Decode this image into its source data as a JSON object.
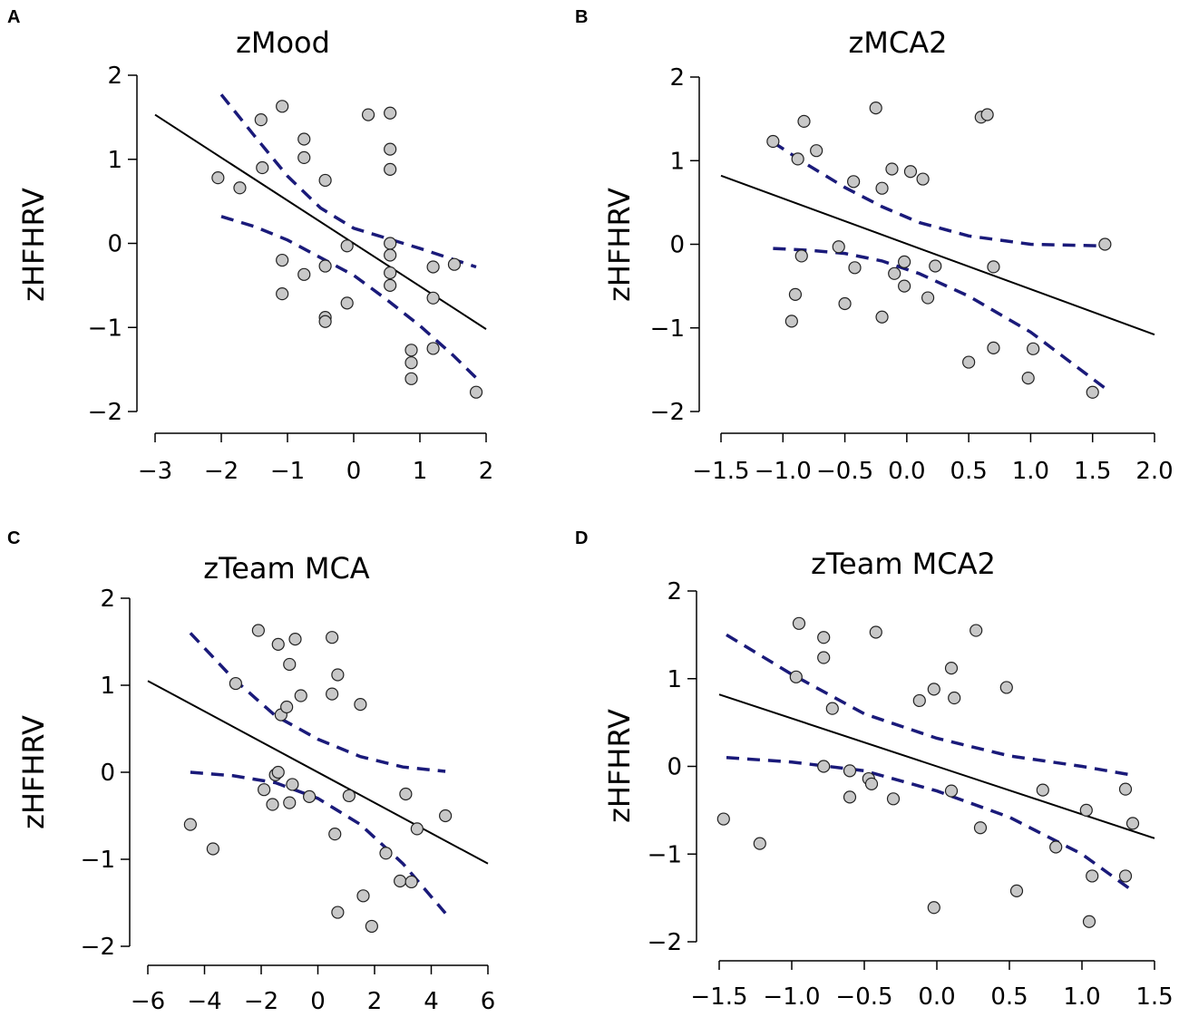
{
  "colors": {
    "point_fill": "#c8c8c8",
    "point_stroke": "#222222",
    "fit_line": "#000000",
    "ci_line": "#1a1a7a"
  },
  "chart_data": [
    {
      "type": "scatter",
      "panel": "A",
      "title": "zMood",
      "xlabel": "",
      "ylabel": "zHFHRV",
      "xlim": [
        -3,
        2
      ],
      "ylim": [
        -2,
        2
      ],
      "xticks": [
        -3,
        -2,
        -1,
        0,
        1,
        2
      ],
      "xtick_labels": [
        "−3",
        "−2",
        "−1",
        "0",
        "1",
        "2"
      ],
      "yticks": [
        -2,
        -1,
        0,
        1,
        2
      ],
      "ytick_labels": [
        "−2",
        "−1",
        "0",
        "1",
        "2"
      ],
      "points": [
        [
          -2.05,
          0.78
        ],
        [
          -1.72,
          0.66
        ],
        [
          -1.4,
          1.47
        ],
        [
          -1.38,
          0.9
        ],
        [
          -1.08,
          1.63
        ],
        [
          -1.08,
          -0.2
        ],
        [
          -1.08,
          -0.6
        ],
        [
          -0.75,
          1.24
        ],
        [
          -0.75,
          1.02
        ],
        [
          -0.75,
          -0.37
        ],
        [
          -0.43,
          0.75
        ],
        [
          -0.43,
          -0.27
        ],
        [
          -0.43,
          -0.88
        ],
        [
          -0.43,
          -0.93
        ],
        [
          -0.1,
          -0.03
        ],
        [
          -0.1,
          -0.71
        ],
        [
          0.22,
          1.53
        ],
        [
          0.55,
          1.55
        ],
        [
          0.55,
          1.12
        ],
        [
          0.55,
          0.88
        ],
        [
          0.55,
          0.0
        ],
        [
          0.55,
          -0.14
        ],
        [
          0.55,
          -0.35
        ],
        [
          0.55,
          -0.5
        ],
        [
          0.87,
          -1.27
        ],
        [
          0.87,
          -1.42
        ],
        [
          0.87,
          -1.61
        ],
        [
          1.2,
          -0.28
        ],
        [
          1.2,
          -0.65
        ],
        [
          1.2,
          -1.25
        ],
        [
          1.52,
          -0.25
        ],
        [
          1.85,
          -1.77
        ]
      ],
      "fit_line": [
        [
          -3.0,
          1.53
        ],
        [
          2.0,
          -1.02
        ]
      ],
      "ci_upper": [
        [
          -2.0,
          1.77
        ],
        [
          -1.5,
          1.28
        ],
        [
          -1.0,
          0.8
        ],
        [
          -0.5,
          0.42
        ],
        [
          0.0,
          0.18
        ],
        [
          0.5,
          0.06
        ],
        [
          1.0,
          -0.06
        ],
        [
          1.5,
          -0.19
        ],
        [
          1.85,
          -0.28
        ]
      ],
      "ci_lower": [
        [
          -2.0,
          0.32
        ],
        [
          -1.5,
          0.2
        ],
        [
          -1.0,
          0.04
        ],
        [
          -0.5,
          -0.17
        ],
        [
          0.0,
          -0.38
        ],
        [
          0.5,
          -0.67
        ],
        [
          1.0,
          -0.98
        ],
        [
          1.5,
          -1.33
        ],
        [
          1.85,
          -1.6
        ]
      ]
    },
    {
      "type": "scatter",
      "panel": "B",
      "title": "zMCA2",
      "xlabel": "",
      "ylabel": "zHFHRV",
      "xlim": [
        -1.5,
        2.0
      ],
      "ylim": [
        -2,
        2
      ],
      "xticks": [
        -1.5,
        -1.0,
        -0.5,
        0.0,
        0.5,
        1.0,
        1.5,
        2.0
      ],
      "xtick_labels": [
        "−1.5",
        "−1.0",
        "−0.5",
        "0.0",
        "0.5",
        "1.0",
        "1.5",
        "2.0"
      ],
      "yticks": [
        -2,
        -1,
        0,
        1,
        2
      ],
      "ytick_labels": [
        "−2",
        "−1",
        "0",
        "1",
        "2"
      ],
      "points": [
        [
          -1.08,
          1.23
        ],
        [
          -0.88,
          1.02
        ],
        [
          -0.83,
          1.47
        ],
        [
          -0.73,
          1.12
        ],
        [
          -0.85,
          -0.14
        ],
        [
          -0.9,
          -0.6
        ],
        [
          -0.93,
          -0.92
        ],
        [
          -0.55,
          -0.03
        ],
        [
          -0.5,
          -0.71
        ],
        [
          -0.43,
          0.75
        ],
        [
          -0.42,
          -0.28
        ],
        [
          -0.25,
          1.63
        ],
        [
          -0.2,
          0.67
        ],
        [
          -0.2,
          -0.87
        ],
        [
          -0.12,
          0.9
        ],
        [
          -0.1,
          -0.35
        ],
        [
          -0.02,
          -0.21
        ],
        [
          -0.02,
          -0.5
        ],
        [
          0.03,
          0.87
        ],
        [
          0.13,
          0.78
        ],
        [
          0.17,
          -0.64
        ],
        [
          0.23,
          -0.26
        ],
        [
          0.5,
          -1.41
        ],
        [
          0.6,
          1.52
        ],
        [
          0.65,
          1.55
        ],
        [
          0.7,
          -0.27
        ],
        [
          0.7,
          -1.24
        ],
        [
          0.98,
          -1.6
        ],
        [
          1.02,
          -1.25
        ],
        [
          1.5,
          -1.77
        ],
        [
          1.6,
          0.0
        ]
      ],
      "fit_line": [
        [
          -1.5,
          0.82
        ],
        [
          2.0,
          -1.08
        ]
      ],
      "ci_upper": [
        [
          -1.08,
          1.22
        ],
        [
          -0.8,
          0.95
        ],
        [
          -0.5,
          0.68
        ],
        [
          -0.2,
          0.45
        ],
        [
          0.1,
          0.26
        ],
        [
          0.5,
          0.1
        ],
        [
          1.0,
          0.0
        ],
        [
          1.6,
          -0.02
        ]
      ],
      "ci_lower": [
        [
          -1.08,
          -0.05
        ],
        [
          -0.8,
          -0.07
        ],
        [
          -0.5,
          -0.11
        ],
        [
          -0.2,
          -0.2
        ],
        [
          0.1,
          -0.35
        ],
        [
          0.5,
          -0.62
        ],
        [
          1.0,
          -1.05
        ],
        [
          1.6,
          -1.72
        ]
      ]
    },
    {
      "type": "scatter",
      "panel": "C",
      "title": "zTeam MCA",
      "xlabel": "",
      "ylabel": "zHFHRV",
      "xlim": [
        -6,
        6
      ],
      "ylim": [
        -2,
        2
      ],
      "xticks": [
        -6,
        -4,
        -2,
        0,
        2,
        4,
        6
      ],
      "xtick_labels": [
        "−6",
        "−4",
        "−2",
        "0",
        "2",
        "4",
        "6"
      ],
      "yticks": [
        -2,
        -1,
        0,
        1,
        2
      ],
      "ytick_labels": [
        "−2",
        "−1",
        "0",
        "1",
        "2"
      ],
      "points": [
        [
          -4.5,
          -0.6
        ],
        [
          -3.7,
          -0.88
        ],
        [
          -2.9,
          1.02
        ],
        [
          -2.1,
          1.63
        ],
        [
          -1.9,
          -0.2
        ],
        [
          -1.6,
          -0.37
        ],
        [
          -1.5,
          -0.03
        ],
        [
          -1.4,
          1.47
        ],
        [
          -1.4,
          0.0
        ],
        [
          -1.3,
          0.66
        ],
        [
          -1.1,
          0.75
        ],
        [
          -1.0,
          1.24
        ],
        [
          -1.0,
          -0.35
        ],
        [
          -0.9,
          -0.14
        ],
        [
          -0.8,
          1.53
        ],
        [
          -0.6,
          0.88
        ],
        [
          -0.3,
          -0.28
        ],
        [
          0.5,
          0.9
        ],
        [
          0.5,
          1.55
        ],
        [
          0.6,
          -0.71
        ],
        [
          0.7,
          1.12
        ],
        [
          0.7,
          -1.61
        ],
        [
          1.1,
          -0.27
        ],
        [
          1.5,
          0.78
        ],
        [
          1.6,
          -1.42
        ],
        [
          1.9,
          -1.77
        ],
        [
          2.4,
          -0.93
        ],
        [
          2.9,
          -1.25
        ],
        [
          3.1,
          -0.25
        ],
        [
          3.3,
          -1.26
        ],
        [
          3.5,
          -0.65
        ],
        [
          4.5,
          -0.5
        ]
      ],
      "fit_line": [
        [
          -6.0,
          1.05
        ],
        [
          6.0,
          -1.05
        ]
      ],
      "ci_upper": [
        [
          -4.5,
          1.6
        ],
        [
          -3.0,
          1.08
        ],
        [
          -1.5,
          0.65
        ],
        [
          0.0,
          0.38
        ],
        [
          1.5,
          0.18
        ],
        [
          3.0,
          0.06
        ],
        [
          4.5,
          0.01
        ]
      ],
      "ci_lower": [
        [
          -4.5,
          0.0
        ],
        [
          -3.0,
          -0.04
        ],
        [
          -1.5,
          -0.12
        ],
        [
          0.0,
          -0.3
        ],
        [
          1.5,
          -0.6
        ],
        [
          3.0,
          -1.05
        ],
        [
          4.5,
          -1.62
        ]
      ]
    },
    {
      "type": "scatter",
      "panel": "D",
      "title": "zTeam MCA2",
      "xlabel": "",
      "ylabel": "zHFHRV",
      "xlim": [
        -1.5,
        1.5
      ],
      "ylim": [
        -2,
        2
      ],
      "xticks": [
        -1.5,
        -1.0,
        -0.5,
        0.0,
        0.5,
        1.0,
        1.5
      ],
      "xtick_labels": [
        "−1.5",
        "−1.0",
        "−0.5",
        "0.0",
        "0.5",
        "1.0",
        "1.5"
      ],
      "yticks": [
        -2,
        -1,
        0,
        1,
        2
      ],
      "ytick_labels": [
        "−2",
        "−1",
        "0",
        "1",
        "2"
      ],
      "points": [
        [
          -1.47,
          -0.6
        ],
        [
          -1.22,
          -0.88
        ],
        [
          -0.97,
          1.02
        ],
        [
          -0.95,
          1.63
        ],
        [
          -0.78,
          1.47
        ],
        [
          -0.78,
          1.24
        ],
        [
          -0.78,
          0.0
        ],
        [
          -0.72,
          0.66
        ],
        [
          -0.6,
          -0.05
        ],
        [
          -0.6,
          -0.35
        ],
        [
          -0.47,
          -0.14
        ],
        [
          -0.45,
          -0.2
        ],
        [
          -0.42,
          1.53
        ],
        [
          -0.3,
          -0.37
        ],
        [
          -0.12,
          0.75
        ],
        [
          -0.02,
          0.88
        ],
        [
          -0.02,
          -1.61
        ],
        [
          0.1,
          1.12
        ],
        [
          0.1,
          -0.28
        ],
        [
          0.12,
          0.78
        ],
        [
          0.27,
          1.55
        ],
        [
          0.3,
          -0.7
        ],
        [
          0.48,
          0.9
        ],
        [
          0.55,
          -1.42
        ],
        [
          0.73,
          -0.27
        ],
        [
          0.82,
          -0.92
        ],
        [
          1.03,
          -0.5
        ],
        [
          1.05,
          -1.77
        ],
        [
          1.07,
          -1.25
        ],
        [
          1.3,
          -0.26
        ],
        [
          1.3,
          -1.25
        ],
        [
          1.35,
          -0.65
        ]
      ],
      "fit_line": [
        [
          -1.5,
          0.82
        ],
        [
          1.5,
          -0.82
        ]
      ],
      "ci_upper": [
        [
          -1.45,
          1.5
        ],
        [
          -1.0,
          1.05
        ],
        [
          -0.5,
          0.6
        ],
        [
          0.0,
          0.32
        ],
        [
          0.5,
          0.12
        ],
        [
          1.0,
          0.0
        ],
        [
          1.35,
          -0.1
        ]
      ],
      "ci_lower": [
        [
          -1.45,
          0.1
        ],
        [
          -1.0,
          0.05
        ],
        [
          -0.5,
          -0.05
        ],
        [
          0.0,
          -0.28
        ],
        [
          0.5,
          -0.58
        ],
        [
          1.0,
          -1.0
        ],
        [
          1.35,
          -1.42
        ]
      ]
    }
  ]
}
